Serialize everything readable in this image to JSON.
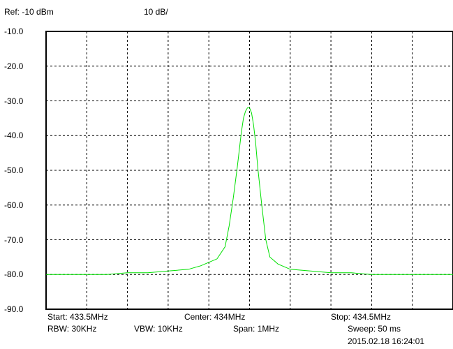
{
  "header": {
    "ref_level": "Ref: -10 dBm",
    "scale": "10 dB/"
  },
  "footer": {
    "start": "Start: 433.5MHz",
    "center": "Center: 434MHz",
    "stop": "Stop: 434.5MHz",
    "rbw": "RBW: 30KHz",
    "vbw": "VBW: 10KHz",
    "span": "Span: 1MHz",
    "sweep": "Sweep: 50  ms",
    "timestamp": "2015.02.18 16:24:01"
  },
  "colors": {
    "trace": "#00e000",
    "grid": "#000000",
    "frame": "#000000",
    "background": "#ffffff"
  },
  "chart_data": {
    "type": "line",
    "title": "",
    "xlabel": "",
    "ylabel": "",
    "x_unit": "MHz",
    "y_unit": "dBm",
    "xlim": [
      433.5,
      434.5
    ],
    "ylim": [
      -90,
      -10
    ],
    "grid": true,
    "ytick_labels": [
      "-10.0",
      "-20.0",
      "-30.0",
      "-40.0",
      "-50.0",
      "-60.0",
      "-70.0",
      "-80.0",
      "-90.0"
    ],
    "x_divisions": 10,
    "series": [
      {
        "x": [
          433.5,
          433.55,
          433.6,
          433.65,
          433.7,
          433.75,
          433.8,
          433.85,
          433.88,
          433.9,
          433.92,
          433.94,
          433.95,
          433.96,
          433.97,
          433.975,
          433.98,
          433.985,
          433.99,
          433.995,
          434.0,
          434.005,
          434.01,
          434.015,
          434.02,
          434.03,
          434.04,
          434.05,
          434.06,
          434.07,
          434.08,
          434.1,
          434.15,
          434.2,
          434.25,
          434.3,
          434.35,
          434.4,
          434.45,
          434.5
        ],
        "y": [
          -80,
          -80,
          -80,
          -80,
          -79.5,
          -79.5,
          -79,
          -78.5,
          -77.5,
          -76.5,
          -75.5,
          -72,
          -66,
          -58,
          -49,
          -44,
          -39,
          -35,
          -33,
          -32,
          -32,
          -33.5,
          -37,
          -42,
          -49,
          -60,
          -70,
          -75,
          -76,
          -77,
          -77.5,
          -78.5,
          -79,
          -79.5,
          -79.5,
          -80,
          -80,
          -80,
          -80,
          -80
        ]
      }
    ]
  }
}
